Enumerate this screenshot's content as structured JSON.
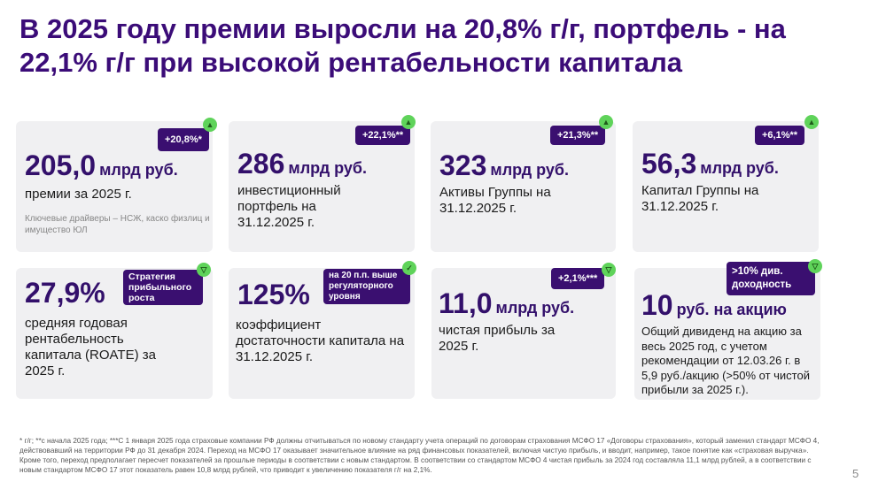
{
  "title": "В 2025 году премии выросли на 20,8% г/г, портфель - на 22,1% г/г при высокой рентабельности капитала",
  "cards": [
    {
      "value": "205,0",
      "unit": "млрд руб.",
      "desc": "премии за 2025 г.",
      "note": "Ключевые драйверы – НСЖ, каско физлиц и имущество ЮЛ",
      "badge": "+20,8%*",
      "icon": "arrow-up-icon"
    },
    {
      "value": "286",
      "unit": "млрд руб.",
      "desc": "инвестиционный портфель на 31.12.2025 г.",
      "badge": "+22,1%**",
      "icon": "arrow-up-icon"
    },
    {
      "value": "323",
      "unit": "млрд руб.",
      "desc": "Активы Группы на 31.12.2025 г.",
      "badge": "+21,3%**",
      "icon": "arrow-up-icon"
    },
    {
      "value": "56,3",
      "unit": "млрд руб.",
      "desc": "Капитал Группы на 31.12.2025 г.",
      "badge": "+6,1%**",
      "icon": "arrow-up-icon"
    },
    {
      "value": "27,9%",
      "desc": "средняя годовая рентабельность капитала (ROATE) за 2025 г.",
      "badge": "Стратегия прибыльного роста",
      "icon": "triangle-down-icon"
    },
    {
      "value": "125%",
      "desc": "коэффициент достаточности капитала на 31.12.2025 г.",
      "badge": "на 20 п.п. выше регуляторного уровня",
      "icon": "check-icon"
    },
    {
      "value": "11,0",
      "unit": "млрд руб.",
      "desc": "чистая прибыль за 2025 г.",
      "badge": "+2,1%***",
      "icon": "triangle-down-icon"
    },
    {
      "value": "10",
      "unit": "руб. на акцию",
      "desc": "Общий дивиденд на акцию за весь 2025 год, с учетом рекомендации от 12.03.26 г. в 5,9 руб./акцию (>50% от чистой прибыли за 2025 г.).",
      "badge": ">10% див. доходность",
      "icon": "triangle-down-icon"
    }
  ],
  "footnote": "* г/г; **с начала 2025 года; ***С 1 января 2025 года страховые компании РФ должны отчитываться по новому стандарту учета операций по договорам страхования МСФО 17 «Договоры страхования», который заменил стандарт МСФО 4, действовавший на территории РФ до 31 декабря 2024. Переход на МСФО 17 оказывает значительное влияние на ряд финансовых показателей, включая чистую прибыль, и вводит, например, такое понятие как «страховая выручка». Кроме того, переход предполагает пересчет показателей за прошлые периоды в соответствии с новым стандартом. В соответствии со стандартом МСФО 4 чистая прибыль за 2024 год составляла 11,1 млрд рублей, а в соответствии с новым стандартом МСФО 17 этот показатель равен 10,8 млрд рублей, что приводит к увеличению показателя г/г на 2,1%.",
  "page_number": "5"
}
